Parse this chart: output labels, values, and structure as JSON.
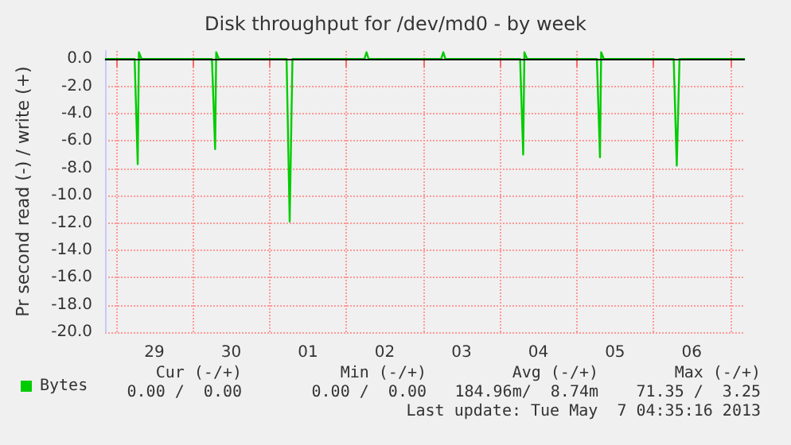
{
  "chart_data": {
    "type": "line",
    "title": "Disk throughput for /dev/md0 - by week",
    "ylabel": "Pr second read (-) / write (+)",
    "x": [
      "2013-04-28T20:35",
      "2013-04-29T05:50",
      "2013-04-29T06:48",
      "2013-04-29T07:10",
      "2013-04-29T08:00",
      "2013-04-30T06:00",
      "2013-04-30T07:00",
      "2013-04-30T07:20",
      "2013-04-30T08:10",
      "2013-05-01T05:20",
      "2013-05-01T06:18",
      "2013-05-01T07:10",
      "2013-05-02T05:40",
      "2013-05-02T06:18",
      "2013-05-02T07:00",
      "2013-05-03T05:40",
      "2013-05-03T06:18",
      "2013-05-03T07:00",
      "2013-05-04T06:20",
      "2013-05-04T07:18",
      "2013-05-04T07:40",
      "2013-05-04T08:30",
      "2013-05-05T06:20",
      "2013-05-05T07:18",
      "2013-05-05T07:40",
      "2013-05-05T08:30",
      "2013-05-06T06:20",
      "2013-05-06T07:18",
      "2013-05-06T08:10",
      "2013-05-07T04:35"
    ],
    "series": [
      {
        "name": "Bytes",
        "color": "#00cc00",
        "values": [
          0,
          0,
          -7.7,
          0.5,
          0,
          0,
          -6.6,
          0.5,
          0,
          0,
          -11.9,
          0,
          0,
          0.5,
          0,
          0,
          0.5,
          0,
          0,
          -7.0,
          0.5,
          0,
          0,
          -7.2,
          0.5,
          0,
          0,
          -7.8,
          0,
          0
        ]
      }
    ],
    "xlim": [
      "2013-04-28T20:35",
      "2013-05-07T04:35"
    ],
    "xticks": [
      {
        "value": "2013-04-29T00:00",
        "label": null
      },
      {
        "value": "2013-04-29T12:00",
        "label": "29"
      },
      {
        "value": "2013-04-30T00:00",
        "label": null
      },
      {
        "value": "2013-04-30T12:00",
        "label": "30"
      },
      {
        "value": "2013-05-01T00:00",
        "label": null
      },
      {
        "value": "2013-05-01T12:00",
        "label": "01"
      },
      {
        "value": "2013-05-02T00:00",
        "label": null
      },
      {
        "value": "2013-05-02T12:00",
        "label": "02"
      },
      {
        "value": "2013-05-03T00:00",
        "label": null
      },
      {
        "value": "2013-05-03T12:00",
        "label": "03"
      },
      {
        "value": "2013-05-04T00:00",
        "label": null
      },
      {
        "value": "2013-05-04T12:00",
        "label": "04"
      },
      {
        "value": "2013-05-05T00:00",
        "label": null
      },
      {
        "value": "2013-05-05T12:00",
        "label": "05"
      },
      {
        "value": "2013-05-06T00:00",
        "label": null
      },
      {
        "value": "2013-05-06T12:00",
        "label": "06"
      },
      {
        "value": "2013-05-07T00:00",
        "label": null
      }
    ],
    "ylim": [
      -20,
      0.6
    ],
    "yticks": [
      {
        "value": -20,
        "label": "-20.0"
      },
      {
        "value": -18,
        "label": "-18.0"
      },
      {
        "value": -16,
        "label": "-16.0"
      },
      {
        "value": -14,
        "label": "-14.0"
      },
      {
        "value": -12,
        "label": "-12.0"
      },
      {
        "value": -10,
        "label": "-10.0"
      },
      {
        "value": -8,
        "label": "-8.0"
      },
      {
        "value": -6,
        "label": "-6.0"
      },
      {
        "value": -4,
        "label": "-4.0"
      },
      {
        "value": -2,
        "label": "-2.0"
      },
      {
        "value": 0,
        "label": "0.0"
      }
    ],
    "ref_lines": [
      {
        "axis": "y",
        "value": 0,
        "label": null,
        "color": "#000000"
      }
    ],
    "grid": true,
    "legend": "bottom left",
    "marker": "none",
    "line_style": "solid",
    "annotations": [
      "Cur (-/+)",
      "Min (-/+)",
      "Avg (-/+)",
      "Max (-/+)",
      "0.00 /  0.00",
      "0.00 /  0.00",
      "184.96m/  8.74m",
      "71.35 /  3.25",
      "Last update: Tue May  7 04:35:16 2013"
    ]
  }
}
